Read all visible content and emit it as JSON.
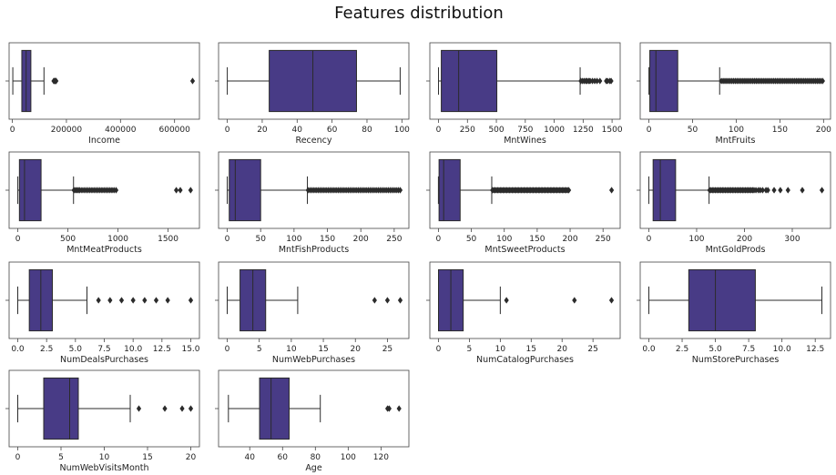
{
  "title": "Features distribution",
  "colors": {
    "box_fill": "#483b86",
    "line": "#2b2b2b",
    "frame": "#444444",
    "text": "#222222"
  },
  "chart_data": [
    {
      "type": "boxplot",
      "xlabel": "Income",
      "xlim": [
        -12000,
        692000
      ],
      "ticks": [
        0,
        200000,
        400000,
        600000
      ],
      "tick_labels": [
        "0",
        "200000",
        "400000",
        "600000"
      ],
      "stats": {
        "whisker_low": 1700,
        "q1": 35000,
        "median": 51000,
        "q3": 68500,
        "whisker_high": 117000
      },
      "outliers": [
        153000,
        156000,
        157000,
        160000,
        162000,
        666666
      ]
    },
    {
      "type": "boxplot",
      "xlabel": "Recency",
      "xlim": [
        -5,
        104
      ],
      "ticks": [
        0,
        20,
        40,
        60,
        80,
        100
      ],
      "tick_labels": [
        "0",
        "20",
        "40",
        "60",
        "80",
        "100"
      ],
      "stats": {
        "whisker_low": 0,
        "q1": 24,
        "median": 49,
        "q3": 74,
        "whisker_high": 99
      },
      "outliers": []
    },
    {
      "type": "boxplot",
      "xlabel": "MntWines",
      "xlim": [
        -75,
        1570
      ],
      "ticks": [
        0,
        250,
        500,
        750,
        1000,
        1250,
        1500
      ],
      "tick_labels": [
        "0",
        "250",
        "500",
        "750",
        "1000",
        "1250",
        "1500"
      ],
      "stats": {
        "whisker_low": 0,
        "q1": 24,
        "median": 174,
        "q3": 504,
        "whisker_high": 1224
      },
      "outliers": [
        1230,
        1245,
        1260,
        1275,
        1285,
        1300,
        1310,
        1330,
        1350,
        1370,
        1395,
        1450,
        1460,
        1480,
        1492
      ]
    },
    {
      "type": "boxplot",
      "xlabel": "MntFruits",
      "xlim": [
        -10,
        208
      ],
      "ticks": [
        0,
        50,
        100,
        150,
        200
      ],
      "tick_labels": [
        "0",
        "50",
        "100",
        "150",
        "200"
      ],
      "stats": {
        "whisker_low": 0,
        "q1": 1,
        "median": 8,
        "q3": 33,
        "whisker_high": 81
      },
      "outliers": [
        83,
        85,
        87,
        89,
        91,
        93,
        95,
        97,
        99,
        101,
        103,
        105,
        107,
        109,
        111,
        113,
        115,
        117,
        119,
        121,
        123,
        125,
        127,
        129,
        131,
        133,
        135,
        137,
        139,
        141,
        143,
        145,
        147,
        149,
        151,
        153,
        155,
        157,
        159,
        161,
        163,
        165,
        167,
        169,
        171,
        173,
        175,
        177,
        179,
        181,
        183,
        185,
        187,
        189,
        191,
        193,
        195,
        197,
        199
      ]
    },
    {
      "type": "boxplot",
      "xlabel": "MntMeatProducts",
      "xlim": [
        -87,
        1813
      ],
      "ticks": [
        0,
        500,
        1000,
        1500
      ],
      "tick_labels": [
        "0",
        "500",
        "1000",
        "1500"
      ],
      "stats": {
        "whisker_low": 0,
        "q1": 16,
        "median": 67,
        "q3": 232,
        "whisker_high": 556
      },
      "outliers": [
        560,
        575,
        590,
        605,
        620,
        640,
        660,
        680,
        700,
        720,
        740,
        760,
        780,
        800,
        820,
        840,
        860,
        880,
        900,
        920,
        940,
        960,
        981,
        1582,
        1622,
        1725
      ]
    },
    {
      "type": "boxplot",
      "xlabel": "MntFishProducts",
      "xlim": [
        -13,
        272
      ],
      "ticks": [
        0,
        50,
        100,
        150,
        200,
        250
      ],
      "tick_labels": [
        "0",
        "50",
        "100",
        "150",
        "200",
        "250"
      ],
      "stats": {
        "whisker_low": 0,
        "q1": 3,
        "median": 12,
        "q3": 50,
        "whisker_high": 120
      },
      "outliers": [
        121,
        124,
        127,
        130,
        133,
        136,
        139,
        142,
        145,
        148,
        151,
        154,
        157,
        160,
        163,
        166,
        169,
        172,
        175,
        178,
        181,
        184,
        187,
        190,
        193,
        196,
        199,
        202,
        205,
        208,
        211,
        214,
        217,
        220,
        223,
        226,
        229,
        232,
        235,
        238,
        241,
        244,
        247,
        250,
        253,
        256,
        259
      ]
    },
    {
      "type": "boxplot",
      "xlabel": "MntSweetProducts",
      "xlim": [
        -13,
        276
      ],
      "ticks": [
        0,
        50,
        100,
        150,
        200,
        250
      ],
      "tick_labels": [
        "0",
        "50",
        "100",
        "150",
        "200",
        "250"
      ],
      "stats": {
        "whisker_low": 0,
        "q1": 1,
        "median": 8,
        "q3": 33,
        "whisker_high": 81
      },
      "outliers": [
        82,
        84,
        86,
        88,
        90,
        92,
        94,
        96,
        98,
        100,
        102,
        104,
        106,
        108,
        110,
        112,
        114,
        116,
        118,
        120,
        122,
        124,
        126,
        128,
        130,
        132,
        134,
        136,
        138,
        140,
        142,
        144,
        146,
        148,
        150,
        152,
        154,
        156,
        158,
        160,
        162,
        164,
        166,
        168,
        170,
        172,
        174,
        176,
        178,
        180,
        182,
        184,
        186,
        188,
        190,
        192,
        194,
        196,
        198,
        263
      ]
    },
    {
      "type": "boxplot",
      "xlabel": "MntGoldProds",
      "xlim": [
        -18,
        380
      ],
      "ticks": [
        0,
        100,
        200,
        300
      ],
      "tick_labels": [
        "0",
        "100",
        "200",
        "300"
      ],
      "stats": {
        "whisker_low": 0,
        "q1": 9,
        "median": 24,
        "q3": 56,
        "whisker_high": 126
      },
      "outliers": [
        127,
        130,
        133,
        136,
        139,
        142,
        145,
        148,
        151,
        154,
        157,
        160,
        163,
        166,
        169,
        172,
        175,
        178,
        181,
        184,
        187,
        190,
        193,
        196,
        199,
        202,
        205,
        208,
        211,
        214,
        217,
        220,
        224,
        229,
        233,
        238,
        245,
        249,
        262,
        275,
        291,
        321,
        362
      ]
    },
    {
      "type": "boxplot",
      "xlabel": "NumDealsPurchases",
      "xlim": [
        -0.75,
        15.75
      ],
      "ticks": [
        0,
        2.5,
        5,
        7.5,
        10,
        12.5,
        15
      ],
      "tick_labels": [
        "0.0",
        "2.5",
        "5.0",
        "7.5",
        "10.0",
        "12.5",
        "15.0"
      ],
      "stats": {
        "whisker_low": 0,
        "q1": 1,
        "median": 2,
        "q3": 3,
        "whisker_high": 6
      },
      "outliers": [
        7,
        8,
        9,
        10,
        11,
        12,
        13,
        15
      ]
    },
    {
      "type": "boxplot",
      "xlabel": "NumWebPurchases",
      "xlim": [
        -1.35,
        28.35
      ],
      "ticks": [
        0,
        5,
        10,
        15,
        20,
        25
      ],
      "tick_labels": [
        "0",
        "5",
        "10",
        "15",
        "20",
        "25"
      ],
      "stats": {
        "whisker_low": 0,
        "q1": 2,
        "median": 4,
        "q3": 6,
        "whisker_high": 11
      },
      "outliers": [
        23,
        25,
        27
      ]
    },
    {
      "type": "boxplot",
      "xlabel": "NumCatalogPurchases",
      "xlim": [
        -1.4,
        29.4
      ],
      "ticks": [
        0,
        5,
        10,
        15,
        20,
        25
      ],
      "tick_labels": [
        "0",
        "5",
        "10",
        "15",
        "20",
        "25"
      ],
      "stats": {
        "whisker_low": 0,
        "q1": 0,
        "median": 2,
        "q3": 4,
        "whisker_high": 10
      },
      "outliers": [
        11,
        22,
        28
      ]
    },
    {
      "type": "boxplot",
      "xlabel": "NumStorePurchases",
      "xlim": [
        -0.65,
        13.65
      ],
      "ticks": [
        0,
        2.5,
        5,
        7.5,
        10,
        12.5
      ],
      "tick_labels": [
        "0.0",
        "2.5",
        "5.0",
        "7.5",
        "10.0",
        "12.5"
      ],
      "stats": {
        "whisker_low": 0,
        "q1": 3,
        "median": 5,
        "q3": 8,
        "whisker_high": 13
      },
      "outliers": []
    },
    {
      "type": "boxplot",
      "xlabel": "NumWebVisitsMonth",
      "xlim": [
        -1,
        21
      ],
      "ticks": [
        0,
        5,
        10,
        15,
        20
      ],
      "tick_labels": [
        "0",
        "5",
        "10",
        "15",
        "20"
      ],
      "stats": {
        "whisker_low": 0,
        "q1": 3,
        "median": 6,
        "q3": 7,
        "whisker_high": 13
      },
      "outliers": [
        14,
        17,
        19,
        20
      ]
    },
    {
      "type": "boxplot",
      "xlabel": "Age",
      "xlim": [
        21,
        137
      ],
      "ticks": [
        40,
        60,
        80,
        100,
        120
      ],
      "tick_labels": [
        "40",
        "60",
        "80",
        "100",
        "120"
      ],
      "stats": {
        "whisker_low": 27,
        "q1": 46,
        "median": 53,
        "q3": 64,
        "whisker_high": 83
      },
      "outliers": [
        124,
        125,
        131
      ]
    }
  ]
}
